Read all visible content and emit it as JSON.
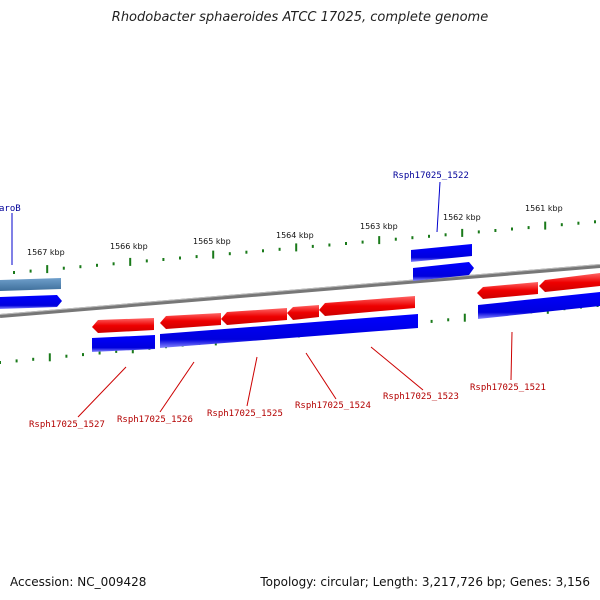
{
  "title": "Rhodobacter sphaeroides ATCC 17025, complete genome",
  "footer": {
    "accession": "Accession: NC_009428",
    "summary": "Topology: circular; Length: 3,217,726 bp; Genes: 3,156"
  },
  "colors": {
    "forward_gene": "#0000ee",
    "reverse_gene": "#ee0000",
    "highlight_gene": "#4682b4",
    "backbone": "#777777",
    "tick": "#1a7a1a",
    "label_forward": "#000099",
    "label_reverse": "#b30000"
  },
  "ticks": [
    {
      "label": "1567 kbp"
    },
    {
      "label": "1566 kbp"
    },
    {
      "label": "1565 kbp"
    },
    {
      "label": "1564 kbp"
    },
    {
      "label": "1563 kbp"
    },
    {
      "label": "1562 kbp"
    },
    {
      "label": "1561 kbp"
    }
  ],
  "top_labels": [
    {
      "name": "aroB"
    },
    {
      "name": "Rsph17025_1522"
    }
  ],
  "bottom_labels": [
    {
      "name": "Rsph17025_1527"
    },
    {
      "name": "Rsph17025_1526"
    },
    {
      "name": "Rsph17025_1525"
    },
    {
      "name": "Rsph17025_1524"
    },
    {
      "name": "Rsph17025_1523"
    },
    {
      "name": "Rsph17025_1521"
    }
  ]
}
